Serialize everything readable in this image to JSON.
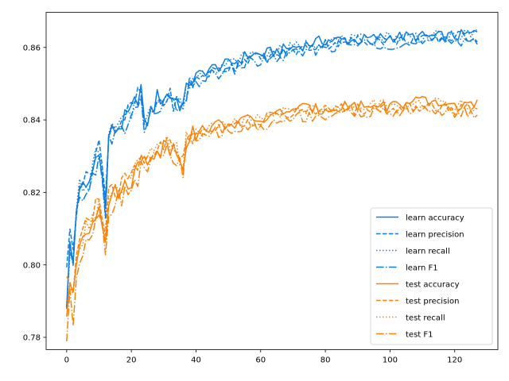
{
  "chart_data": {
    "type": "line",
    "title": "",
    "xlabel": "",
    "ylabel": "",
    "xlim": [
      -6.35,
      133.35
    ],
    "ylim": [
      0.7766,
      0.8697
    ],
    "xticks": [
      0,
      20,
      40,
      60,
      80,
      100,
      120
    ],
    "yticks": [
      0.78,
      0.8,
      0.82,
      0.84,
      0.86
    ],
    "ytick_labels": [
      "0.78",
      "0.80",
      "0.82",
      "0.84",
      "0.86"
    ],
    "grid": false,
    "legend_position": "lower-right",
    "colors": {
      "learn": "#0a7ee6",
      "test": "#fb8208"
    },
    "series": [
      {
        "name": "learn accuracy",
        "group": "learn",
        "dash": "solid",
        "anchors": [
          [
            0,
            0.79
          ],
          [
            1,
            0.805
          ],
          [
            2,
            0.8
          ],
          [
            3,
            0.815
          ],
          [
            4,
            0.822
          ],
          [
            6,
            0.82
          ],
          [
            8,
            0.826
          ],
          [
            10,
            0.833
          ],
          [
            12,
            0.815
          ],
          [
            13,
            0.836
          ],
          [
            16,
            0.838
          ],
          [
            20,
            0.842
          ],
          [
            23,
            0.849
          ],
          [
            24,
            0.838
          ],
          [
            28,
            0.846
          ],
          [
            32,
            0.847
          ],
          [
            36,
            0.844
          ],
          [
            38,
            0.851
          ],
          [
            40,
            0.852
          ],
          [
            44,
            0.854
          ],
          [
            48,
            0.855
          ],
          [
            52,
            0.856
          ],
          [
            56,
            0.858
          ],
          [
            60,
            0.858
          ],
          [
            65,
            0.859
          ],
          [
            70,
            0.86
          ],
          [
            75,
            0.861
          ],
          [
            80,
            0.862
          ],
          [
            90,
            0.862
          ],
          [
            100,
            0.863
          ],
          [
            110,
            0.863
          ],
          [
            120,
            0.863
          ],
          [
            127,
            0.864
          ]
        ],
        "noise": 0.0016
      },
      {
        "name": "learn precision",
        "group": "learn",
        "dash": "dashed",
        "anchors": [
          [
            0,
            0.801
          ],
          [
            1,
            0.808
          ],
          [
            2,
            0.804
          ],
          [
            3,
            0.816
          ],
          [
            4,
            0.824
          ],
          [
            6,
            0.823
          ],
          [
            8,
            0.828
          ],
          [
            10,
            0.834
          ],
          [
            12,
            0.818
          ],
          [
            13,
            0.838
          ],
          [
            16,
            0.839
          ],
          [
            20,
            0.843
          ],
          [
            23,
            0.848
          ],
          [
            24,
            0.837
          ],
          [
            28,
            0.845
          ],
          [
            32,
            0.846
          ],
          [
            36,
            0.843
          ],
          [
            38,
            0.85
          ],
          [
            40,
            0.851
          ],
          [
            44,
            0.853
          ],
          [
            48,
            0.854
          ],
          [
            52,
            0.855
          ],
          [
            56,
            0.857
          ],
          [
            60,
            0.857
          ],
          [
            65,
            0.858
          ],
          [
            70,
            0.859
          ],
          [
            75,
            0.86
          ],
          [
            80,
            0.861
          ],
          [
            90,
            0.862
          ],
          [
            100,
            0.862
          ],
          [
            110,
            0.862
          ],
          [
            120,
            0.863
          ],
          [
            127,
            0.863
          ]
        ],
        "noise": 0.0016
      },
      {
        "name": "learn recall",
        "group": "learn",
        "dash": "dotted",
        "anchors": [
          [
            0,
            0.79
          ],
          [
            1,
            0.805
          ],
          [
            2,
            0.8
          ],
          [
            3,
            0.815
          ],
          [
            4,
            0.822
          ],
          [
            6,
            0.82
          ],
          [
            8,
            0.826
          ],
          [
            10,
            0.833
          ],
          [
            12,
            0.815
          ],
          [
            13,
            0.836
          ],
          [
            16,
            0.838
          ],
          [
            20,
            0.842
          ],
          [
            23,
            0.849
          ],
          [
            24,
            0.838
          ],
          [
            28,
            0.846
          ],
          [
            32,
            0.847
          ],
          [
            36,
            0.844
          ],
          [
            38,
            0.851
          ],
          [
            40,
            0.852
          ],
          [
            44,
            0.854
          ],
          [
            48,
            0.855
          ],
          [
            52,
            0.856
          ],
          [
            56,
            0.858
          ],
          [
            60,
            0.858
          ],
          [
            65,
            0.859
          ],
          [
            70,
            0.86
          ],
          [
            75,
            0.861
          ],
          [
            80,
            0.862
          ],
          [
            90,
            0.862
          ],
          [
            100,
            0.863
          ],
          [
            110,
            0.863
          ],
          [
            120,
            0.863
          ],
          [
            127,
            0.864
          ]
        ],
        "noise": 0.0016
      },
      {
        "name": "learn F1",
        "group": "learn",
        "dash": "dashdot",
        "anchors": [
          [
            0,
            0.787
          ],
          [
            1,
            0.803
          ],
          [
            2,
            0.797
          ],
          [
            3,
            0.813
          ],
          [
            4,
            0.82
          ],
          [
            6,
            0.818
          ],
          [
            8,
            0.824
          ],
          [
            10,
            0.831
          ],
          [
            12,
            0.812
          ],
          [
            13,
            0.834
          ],
          [
            16,
            0.836
          ],
          [
            20,
            0.84
          ],
          [
            23,
            0.847
          ],
          [
            24,
            0.836
          ],
          [
            28,
            0.844
          ],
          [
            32,
            0.845
          ],
          [
            36,
            0.842
          ],
          [
            38,
            0.849
          ],
          [
            40,
            0.85
          ],
          [
            44,
            0.852
          ],
          [
            48,
            0.853
          ],
          [
            52,
            0.854
          ],
          [
            56,
            0.856
          ],
          [
            60,
            0.856
          ],
          [
            65,
            0.857
          ],
          [
            70,
            0.858
          ],
          [
            75,
            0.859
          ],
          [
            80,
            0.86
          ],
          [
            90,
            0.861
          ],
          [
            100,
            0.861
          ],
          [
            110,
            0.861
          ],
          [
            120,
            0.862
          ],
          [
            127,
            0.862
          ]
        ],
        "noise": 0.0016
      },
      {
        "name": "test accuracy",
        "group": "test",
        "dash": "solid",
        "anchors": [
          [
            0,
            0.787
          ],
          [
            1,
            0.794
          ],
          [
            2,
            0.79
          ],
          [
            3,
            0.8
          ],
          [
            4,
            0.806
          ],
          [
            6,
            0.81
          ],
          [
            8,
            0.812
          ],
          [
            10,
            0.818
          ],
          [
            12,
            0.808
          ],
          [
            13,
            0.818
          ],
          [
            16,
            0.82
          ],
          [
            20,
            0.824
          ],
          [
            24,
            0.829
          ],
          [
            28,
            0.832
          ],
          [
            32,
            0.833
          ],
          [
            36,
            0.829
          ],
          [
            37,
            0.835
          ],
          [
            40,
            0.836
          ],
          [
            44,
            0.838
          ],
          [
            48,
            0.839
          ],
          [
            52,
            0.839
          ],
          [
            56,
            0.84
          ],
          [
            60,
            0.84
          ],
          [
            64,
            0.841
          ],
          [
            68,
            0.843
          ],
          [
            72,
            0.843
          ],
          [
            76,
            0.843
          ],
          [
            80,
            0.843
          ],
          [
            85,
            0.844
          ],
          [
            90,
            0.844
          ],
          [
            100,
            0.844
          ],
          [
            110,
            0.845
          ],
          [
            120,
            0.844
          ],
          [
            127,
            0.844
          ]
        ],
        "noise": 0.0016
      },
      {
        "name": "test precision",
        "group": "test",
        "dash": "dashed",
        "anchors": [
          [
            0,
            0.794
          ],
          [
            1,
            0.796
          ],
          [
            2,
            0.792
          ],
          [
            3,
            0.802
          ],
          [
            4,
            0.808
          ],
          [
            6,
            0.812
          ],
          [
            8,
            0.813
          ],
          [
            10,
            0.819
          ],
          [
            12,
            0.809
          ],
          [
            13,
            0.819
          ],
          [
            16,
            0.821
          ],
          [
            20,
            0.825
          ],
          [
            24,
            0.83
          ],
          [
            28,
            0.832
          ],
          [
            32,
            0.833
          ],
          [
            36,
            0.829
          ],
          [
            37,
            0.835
          ],
          [
            40,
            0.836
          ],
          [
            44,
            0.838
          ],
          [
            48,
            0.838
          ],
          [
            52,
            0.839
          ],
          [
            56,
            0.839
          ],
          [
            60,
            0.84
          ],
          [
            64,
            0.841
          ],
          [
            68,
            0.842
          ],
          [
            72,
            0.842
          ],
          [
            76,
            0.842
          ],
          [
            80,
            0.843
          ],
          [
            85,
            0.843
          ],
          [
            90,
            0.843
          ],
          [
            100,
            0.843
          ],
          [
            110,
            0.844
          ],
          [
            120,
            0.843
          ],
          [
            127,
            0.843
          ]
        ],
        "noise": 0.0016
      },
      {
        "name": "test recall",
        "group": "test",
        "dash": "dotted",
        "anchors": [
          [
            0,
            0.787
          ],
          [
            1,
            0.794
          ],
          [
            2,
            0.79
          ],
          [
            3,
            0.8
          ],
          [
            4,
            0.806
          ],
          [
            6,
            0.81
          ],
          [
            8,
            0.812
          ],
          [
            10,
            0.818
          ],
          [
            12,
            0.808
          ],
          [
            13,
            0.818
          ],
          [
            16,
            0.82
          ],
          [
            20,
            0.824
          ],
          [
            24,
            0.829
          ],
          [
            28,
            0.832
          ],
          [
            32,
            0.833
          ],
          [
            36,
            0.829
          ],
          [
            37,
            0.835
          ],
          [
            40,
            0.836
          ],
          [
            44,
            0.838
          ],
          [
            48,
            0.839
          ],
          [
            52,
            0.839
          ],
          [
            56,
            0.84
          ],
          [
            60,
            0.84
          ],
          [
            64,
            0.841
          ],
          [
            68,
            0.843
          ],
          [
            72,
            0.843
          ],
          [
            76,
            0.843
          ],
          [
            80,
            0.843
          ],
          [
            85,
            0.844
          ],
          [
            90,
            0.844
          ],
          [
            100,
            0.844
          ],
          [
            110,
            0.845
          ],
          [
            120,
            0.844
          ],
          [
            127,
            0.844
          ]
        ],
        "noise": 0.0016
      },
      {
        "name": "test F1",
        "group": "test",
        "dash": "dashdot",
        "anchors": [
          [
            0,
            0.78
          ],
          [
            1,
            0.791
          ],
          [
            2,
            0.784
          ],
          [
            3,
            0.797
          ],
          [
            4,
            0.803
          ],
          [
            6,
            0.807
          ],
          [
            8,
            0.81
          ],
          [
            10,
            0.816
          ],
          [
            12,
            0.803
          ],
          [
            13,
            0.816
          ],
          [
            16,
            0.818
          ],
          [
            20,
            0.822
          ],
          [
            24,
            0.827
          ],
          [
            28,
            0.83
          ],
          [
            32,
            0.831
          ],
          [
            36,
            0.826
          ],
          [
            37,
            0.833
          ],
          [
            40,
            0.834
          ],
          [
            44,
            0.836
          ],
          [
            48,
            0.837
          ],
          [
            52,
            0.837
          ],
          [
            56,
            0.838
          ],
          [
            60,
            0.838
          ],
          [
            64,
            0.839
          ],
          [
            68,
            0.84
          ],
          [
            72,
            0.841
          ],
          [
            76,
            0.841
          ],
          [
            80,
            0.841
          ],
          [
            85,
            0.842
          ],
          [
            90,
            0.842
          ],
          [
            100,
            0.842
          ],
          [
            110,
            0.843
          ],
          [
            120,
            0.842
          ],
          [
            127,
            0.842
          ]
        ],
        "noise": 0.0016
      }
    ]
  }
}
